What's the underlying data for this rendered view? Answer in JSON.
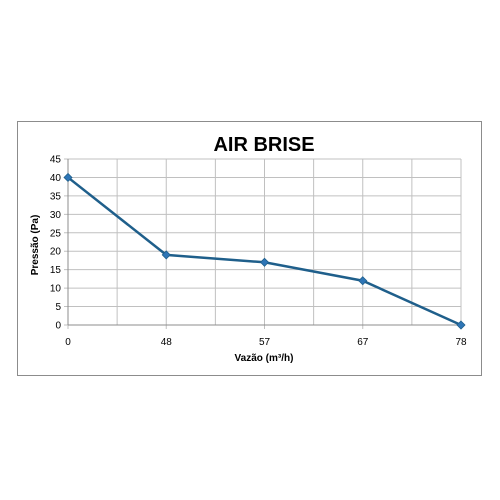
{
  "chart_data": {
    "type": "line",
    "title": "AIR BRISE",
    "xlabel": "Vazão (m³/h)",
    "ylabel": "Pressão (Pa)",
    "categories": [
      "0",
      "48",
      "57",
      "67",
      "78"
    ],
    "series": [
      {
        "values": [
          40,
          19,
          17,
          12,
          0
        ]
      }
    ],
    "ylim": [
      0,
      45
    ],
    "yticks": [
      "0",
      "5",
      "10",
      "15",
      "20",
      "25",
      "30",
      "35",
      "40",
      "45"
    ],
    "grid": true,
    "colors": {
      "line": "#1f5f8b",
      "marker": "#2e75b6",
      "grid": "#c0c0c0",
      "axis": "#8c8c8c"
    }
  }
}
